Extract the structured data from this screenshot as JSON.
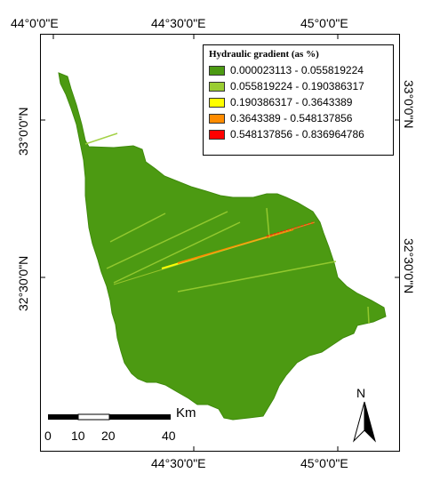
{
  "map": {
    "coords_top": [
      "44°0'0\"E",
      "44°30'0\"E",
      "45°0'0\"E"
    ],
    "coords_bottom": [
      "44°30'0\"E",
      "45°0'0\"E"
    ],
    "coords_left": [
      "33°0'0\"N",
      "32°30'0\"N"
    ],
    "coords_right": [
      "33°0'0\"N",
      "32°30'0\"N"
    ]
  },
  "legend": {
    "title": "Hydraulic gradient (as %)",
    "items": [
      {
        "label": "0.000023113 - 0.055819224",
        "color": "#4c9a12"
      },
      {
        "label": "0.055819224 - 0.190386317",
        "color": "#9acd32"
      },
      {
        "label": "0.190386317 - 0.3643389",
        "color": "#ffff00"
      },
      {
        "label": "0.3643389 - 0.548137856",
        "color": "#ff8c00"
      },
      {
        "label": "0.548137856 - 0.836964786",
        "color": "#ff0000"
      }
    ]
  },
  "scale_bar": {
    "ticks": [
      "0",
      "10",
      "20",
      "40"
    ],
    "unit": "Km"
  },
  "north_arrow": {
    "label": "N"
  }
}
